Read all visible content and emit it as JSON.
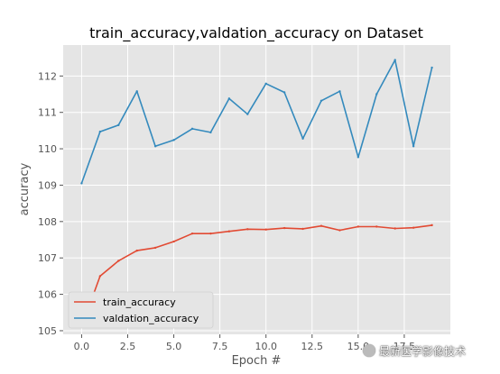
{
  "chart_data": {
    "type": "line",
    "title": "train_accuracy,valdation_accuracy on Dataset",
    "xlabel": "Epoch #",
    "ylabel": "accuracy",
    "x": [
      0,
      1,
      2,
      3,
      4,
      5,
      6,
      7,
      8,
      9,
      10,
      11,
      12,
      13,
      14,
      15,
      16,
      17,
      18,
      19
    ],
    "xlim": [
      -1,
      20
    ],
    "ylim": [
      104.9,
      112.85
    ],
    "xticks": [
      0.0,
      2.5,
      5.0,
      7.5,
      10.0,
      12.5,
      15.0,
      17.5
    ],
    "xtick_labels": [
      "0.0",
      "2.5",
      "5.0",
      "7.5",
      "10.0",
      "12.5",
      "15.0",
      "17.5"
    ],
    "yticks": [
      105,
      106,
      107,
      108,
      109,
      110,
      111,
      112
    ],
    "ytick_labels": [
      "105",
      "106",
      "107",
      "108",
      "109",
      "110",
      "111",
      "112"
    ],
    "grid": true,
    "legend_position": "lower-left",
    "background": "#e5e5e5",
    "series": [
      {
        "name": "train_accuracy",
        "color": "#e24a33",
        "values": [
          105.1,
          106.5,
          106.92,
          107.2,
          107.28,
          107.45,
          107.67,
          107.67,
          107.73,
          107.79,
          107.78,
          107.82,
          107.8,
          107.88,
          107.76,
          107.86,
          107.86,
          107.81,
          107.83,
          107.9
        ]
      },
      {
        "name": "valdation_accuracy",
        "color": "#348abd",
        "values": [
          109.05,
          110.47,
          110.65,
          111.58,
          110.07,
          110.24,
          110.55,
          110.45,
          111.38,
          110.95,
          111.79,
          111.55,
          110.28,
          111.32,
          111.58,
          109.77,
          111.5,
          112.44,
          110.07,
          112.23
        ]
      }
    ]
  },
  "watermark": "最新医学影像技术"
}
